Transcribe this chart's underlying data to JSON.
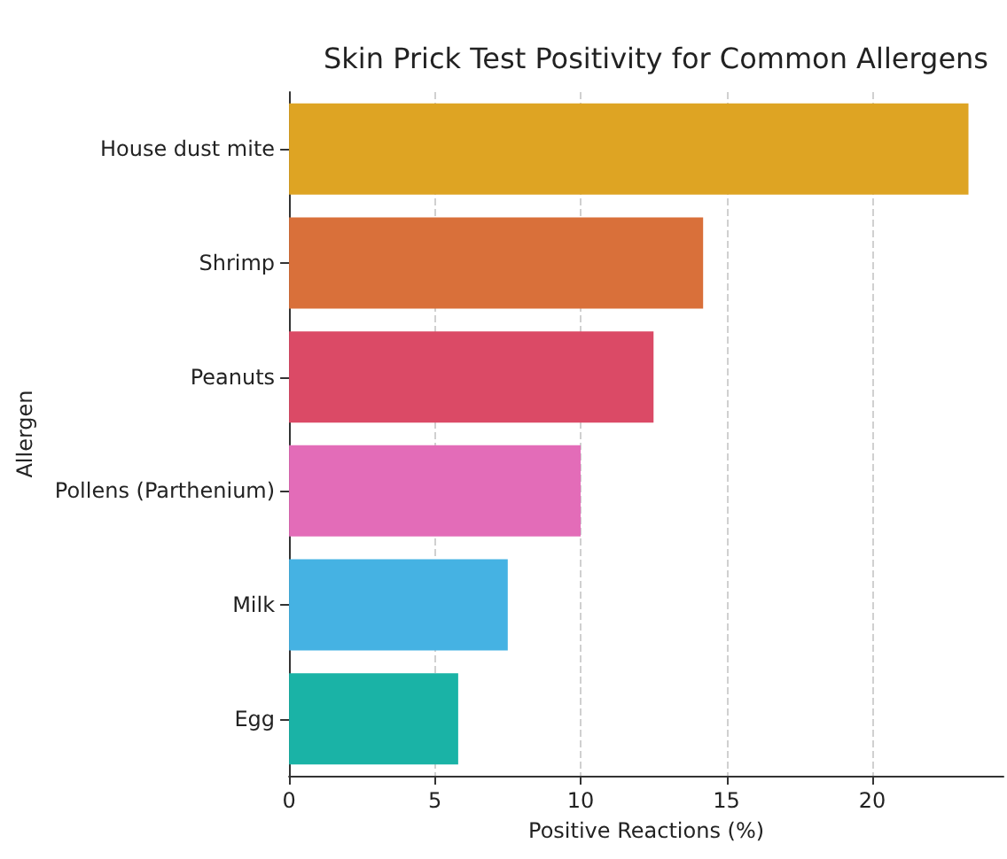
{
  "chart_data": {
    "type": "bar",
    "orientation": "horizontal",
    "title": "Skin Prick Test Positivity for Common Allergens",
    "xlabel": "Positive Reactions (%)",
    "ylabel": "Allergen",
    "categories": [
      "House dust mite",
      "Shrimp",
      "Peanuts",
      "Pollens (Parthenium)",
      "Milk",
      "Egg"
    ],
    "values": [
      23.3,
      14.2,
      12.5,
      10.0,
      7.5,
      5.8
    ],
    "colors": [
      "#dea423",
      "#d9703a",
      "#db4a66",
      "#e36cb8",
      "#45b2e3",
      "#1ab3a6"
    ],
    "xlim": [
      0,
      24.5
    ],
    "xticks": [
      0,
      5,
      10,
      15,
      20
    ],
    "grid": "x"
  }
}
